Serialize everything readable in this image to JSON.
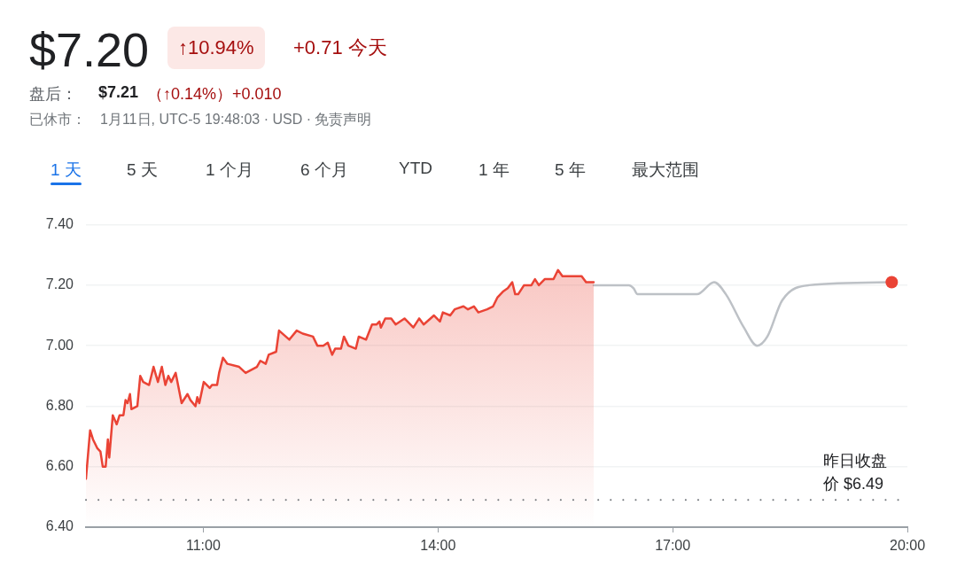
{
  "chart_data": {
    "type": "line",
    "title": "$7.20",
    "annotations": [
      "↑10.94%",
      "+0.71 今天",
      "盘后：",
      "$7.21",
      "（↑0.14%）+0.010",
      "已休市：",
      "1月11日, UTC-5 19:48:03 · USD · 免责声明",
      "1 天",
      "5 天",
      "1 个月",
      "6 个月",
      "YTD",
      "1 年",
      "5 年",
      "最大范围"
    ],
    "series": [
      {
        "type": "area",
        "color": "#ea4335",
        "x": [
          9.5,
          9.553,
          9.59,
          9.647,
          9.685,
          9.715,
          9.752,
          9.78,
          9.798,
          9.843,
          9.893,
          9.93,
          9.979,
          10.006,
          10.032,
          10.063,
          10.081,
          10.157,
          10.194,
          10.232,
          10.307,
          10.364,
          10.42,
          10.47,
          10.515,
          10.553,
          10.59,
          10.647,
          10.723,
          10.798,
          10.836,
          10.9,
          10.923,
          10.949,
          11.006,
          11.082,
          11.111,
          11.176,
          11.202,
          11.251,
          11.308,
          11.458,
          11.541,
          11.685,
          11.73,
          11.798,
          11.836,
          11.931,
          11.968,
          12.1,
          12.194,
          12.27,
          12.402,
          12.458,
          12.534,
          12.591,
          12.647,
          12.685,
          12.76,
          12.798,
          12.854,
          12.95,
          12.987,
          13.081,
          13.157,
          13.213,
          13.251,
          13.27,
          13.326,
          13.402,
          13.459,
          13.572,
          13.685,
          13.76,
          13.817,
          13.949,
          14.025,
          14.062,
          14.156,
          14.213,
          14.326,
          14.383,
          14.459,
          14.515,
          14.628,
          14.704,
          14.761,
          14.836,
          14.892,
          14.949,
          14.987,
          15.025,
          15.1,
          15.194,
          15.24,
          15.289,
          15.364,
          15.477,
          15.534,
          15.591,
          15.723,
          15.836,
          15.893,
          15.99
        ],
        "values": [
          6.56,
          6.72,
          6.69,
          6.66,
          6.65,
          6.6,
          6.6,
          6.69,
          6.63,
          6.77,
          6.74,
          6.77,
          6.77,
          6.82,
          6.81,
          6.84,
          6.79,
          6.8,
          6.9,
          6.88,
          6.87,
          6.93,
          6.88,
          6.93,
          6.87,
          6.9,
          6.88,
          6.91,
          6.81,
          6.84,
          6.82,
          6.8,
          6.83,
          6.81,
          6.88,
          6.86,
          6.87,
          6.87,
          6.91,
          6.96,
          6.94,
          6.93,
          6.91,
          6.93,
          6.95,
          6.94,
          6.97,
          6.98,
          7.05,
          7.02,
          7.05,
          7.04,
          7.03,
          7.0,
          7.0,
          7.01,
          6.97,
          6.99,
          6.99,
          7.03,
          7.0,
          6.99,
          7.03,
          7.02,
          7.07,
          7.07,
          7.08,
          7.06,
          7.09,
          7.09,
          7.07,
          7.09,
          7.06,
          7.09,
          7.07,
          7.1,
          7.08,
          7.11,
          7.1,
          7.12,
          7.13,
          7.12,
          7.13,
          7.11,
          7.12,
          7.13,
          7.16,
          7.18,
          7.19,
          7.21,
          7.17,
          7.17,
          7.2,
          7.2,
          7.22,
          7.2,
          7.22,
          7.22,
          7.25,
          7.23,
          7.23,
          7.23,
          7.21,
          7.21
        ]
      },
      {
        "type": "line",
        "color": "#bdc1c6",
        "x": [
          15.99,
          16.44,
          16.5,
          16.55,
          16.59,
          17.31,
          17.53,
          17.68,
          17.91,
          18.08,
          18.21,
          18.4,
          18.74,
          19.8
        ],
        "values": [
          7.2,
          7.2,
          7.19,
          7.17,
          7.17,
          7.17,
          7.21,
          7.17,
          7.06,
          7.0,
          7.03,
          7.15,
          7.2,
          7.21
        ]
      },
      {
        "type": "scatter",
        "color": "#ea4335",
        "x": [
          19.8
        ],
        "values": [
          7.21
        ]
      }
    ],
    "xlim": [
      9.5,
      20
    ],
    "xticks": [
      {
        "value": 11,
        "label": "11:00"
      },
      {
        "value": 14,
        "label": "14:00"
      },
      {
        "value": 17,
        "label": "17:00"
      },
      {
        "value": 20,
        "label": "20:00"
      }
    ],
    "ylim": [
      6.4,
      7.4
    ],
    "yticks": [
      {
        "value": 6.4,
        "label": "6.40"
      },
      {
        "value": 6.6,
        "label": "6.60"
      },
      {
        "value": 6.8,
        "label": "6.80"
      },
      {
        "value": 7.0,
        "label": "7.00"
      },
      {
        "value": 7.2,
        "label": "7.20"
      },
      {
        "value": 7.4,
        "label": "7.40"
      }
    ],
    "ref_lines": [
      {
        "axis": "y",
        "value": 6.49,
        "label": "昨日收盘价 $6.49",
        "color": "#70757a",
        "line_style": "dotted"
      }
    ],
    "grid": "y",
    "legend": false
  }
}
